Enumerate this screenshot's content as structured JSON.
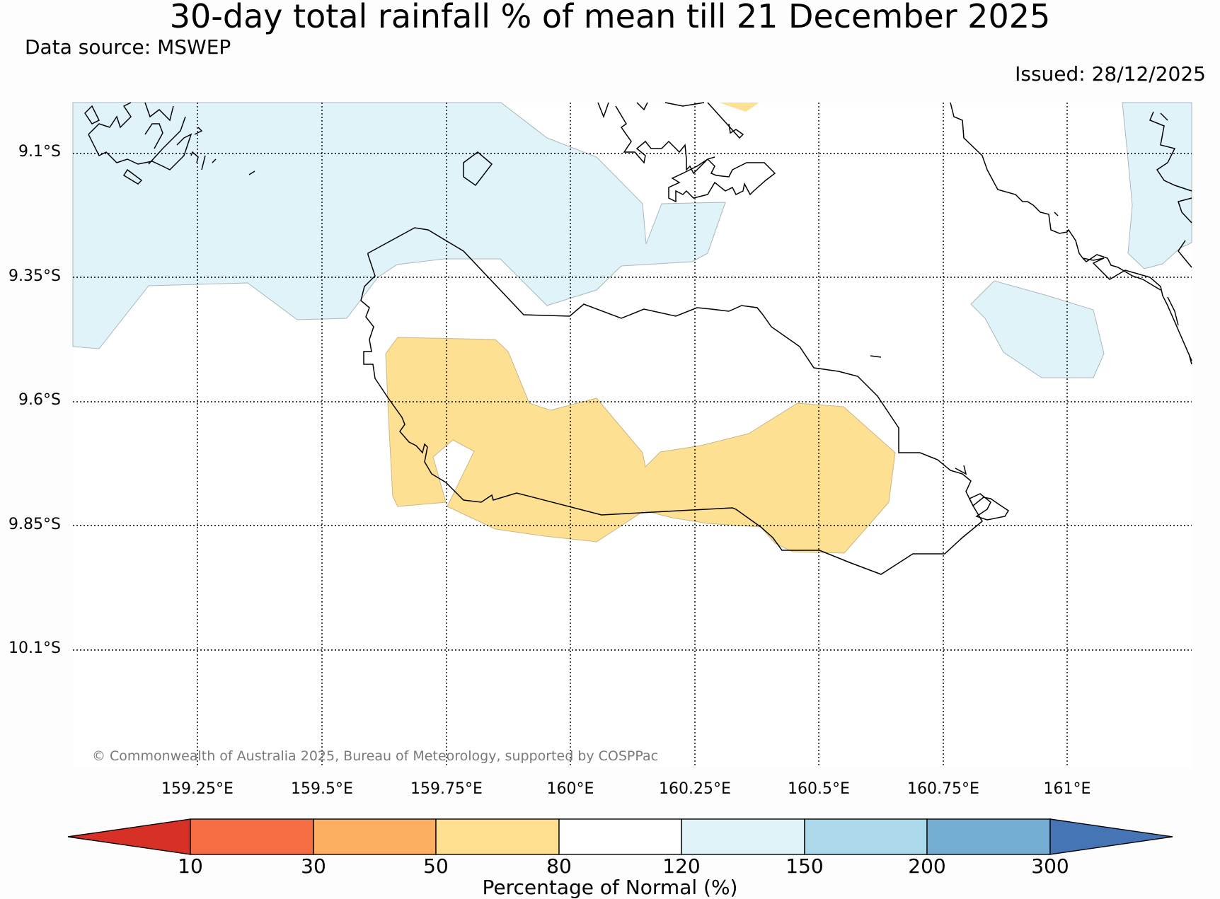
{
  "header": {
    "title": "30-day total rainfall % of mean till 21 December 2025",
    "source": "Data source: MSWEP",
    "issued": "Issued: 28/12/2025"
  },
  "map": {
    "lat_labels": [
      "9.1°S",
      "9.35°S",
      "9.6°S",
      "9.85°S",
      "10.1°S"
    ],
    "lon_labels": [
      "159.25°E",
      "159.5°E",
      "159.75°E",
      "160°E",
      "160.25°E",
      "160.5°E",
      "160.75°E",
      "161°E"
    ],
    "copyright": "© Commonwealth of Australia 2025, Bureau of Meteorology, supported by COSPPac",
    "colors": {
      "dry_80_120": "#fee093",
      "wet_120_150": "#e0f3f8",
      "coastline": "#000000"
    }
  },
  "colorbar": {
    "title": "Percentage of Normal (%)",
    "ticks": [
      "10",
      "30",
      "50",
      "80",
      "120",
      "150",
      "200",
      "300"
    ],
    "colors": [
      "#d73027",
      "#f46d43",
      "#fdae61",
      "#fee090",
      "#ffffff",
      "#e0f3f8",
      "#abd9e9",
      "#74add1",
      "#4575b4"
    ]
  }
}
